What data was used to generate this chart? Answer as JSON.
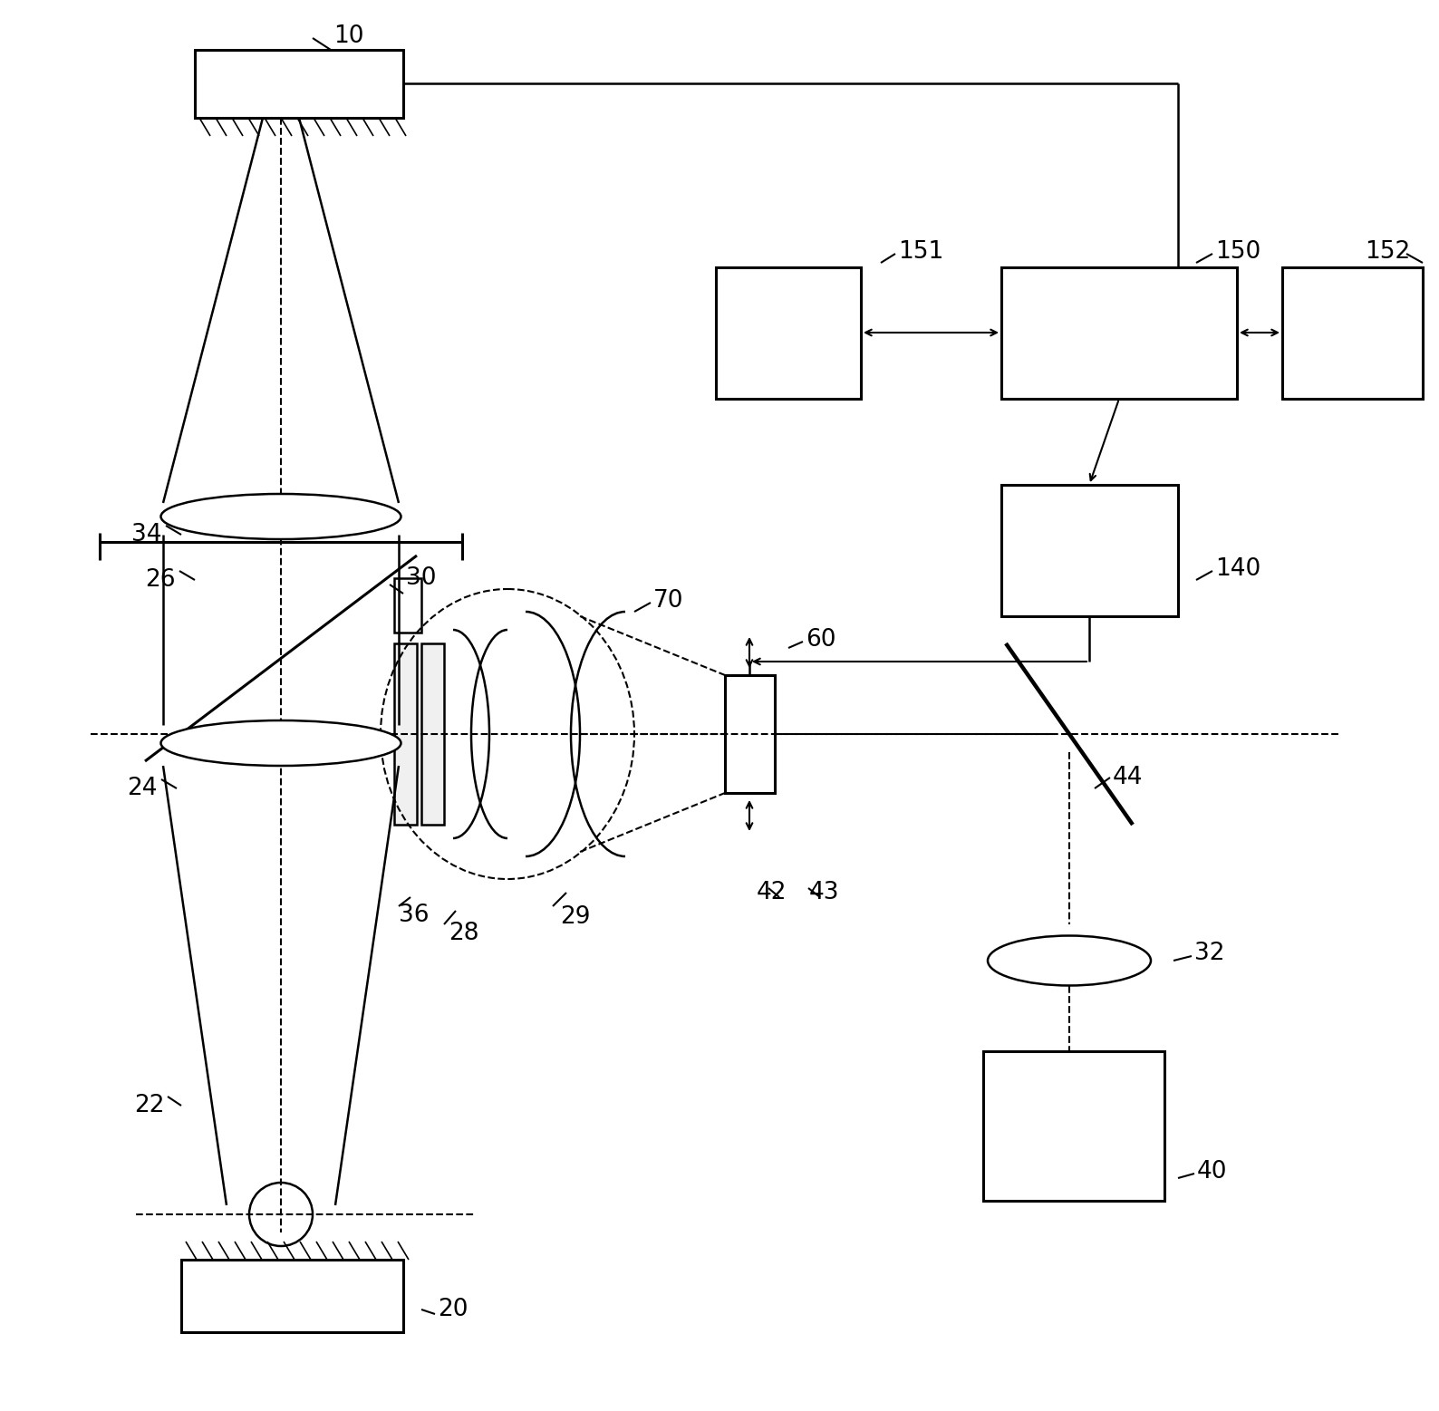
{
  "bg_color": "#ffffff",
  "fig_width": 15.88,
  "fig_height": 15.57
}
